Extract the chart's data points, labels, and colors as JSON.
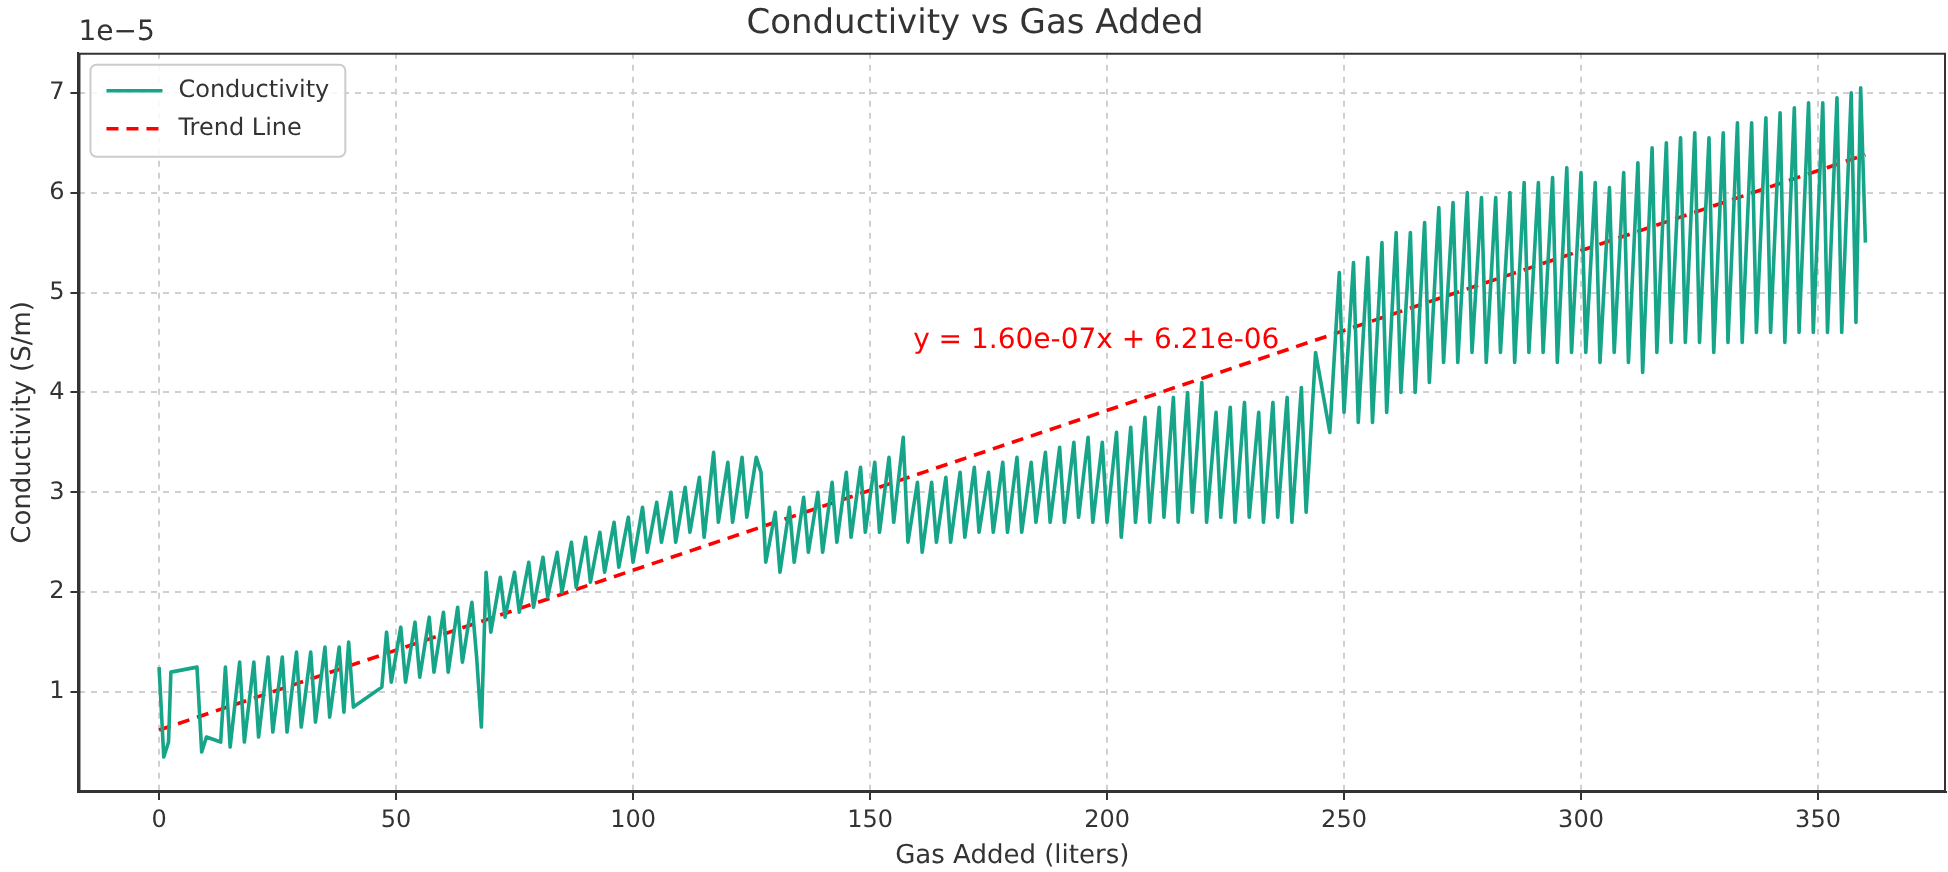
{
  "chart_data": {
    "type": "line",
    "title": "Conductivity vs Gas Added",
    "xlabel": "Gas Added (liters)",
    "ylabel": "Conductivity (S/m)",
    "xlim": [
      -17,
      377
    ],
    "xticks": [
      0,
      50,
      100,
      150,
      200,
      250,
      300,
      350
    ],
    "ylim": [
      0,
      7.4
    ],
    "yticks": [
      1,
      2,
      3,
      4,
      5,
      6,
      7
    ],
    "grid": true,
    "legend": "top left",
    "marker": "none",
    "annotations": [
      "1e−5",
      "y = 1.60e-07x + 6.21e-06"
    ],
    "series": [
      {
        "name": "Conductivity",
        "color": "#17a589",
        "line_style": "solid",
        "x": [
          0,
          1,
          2,
          2.5,
          8,
          9,
          10,
          13,
          14,
          15,
          17,
          18,
          20,
          21,
          23,
          24,
          26,
          27,
          29,
          30,
          32,
          33,
          35,
          36,
          38,
          39,
          40,
          41,
          47,
          48,
          49,
          51,
          52,
          54,
          55,
          57,
          58,
          60,
          61,
          63,
          64,
          66,
          67,
          68,
          69,
          70,
          72,
          73,
          75,
          76,
          78,
          79,
          81,
          82,
          84,
          85,
          87,
          88,
          90,
          91,
          93,
          94,
          96,
          97,
          99,
          100,
          102,
          103,
          105,
          106,
          108,
          109,
          111,
          112,
          114,
          115,
          117,
          118,
          120,
          121,
          123,
          124,
          126,
          127,
          128,
          130,
          131,
          133,
          134,
          136,
          137,
          139,
          140,
          142,
          143,
          145,
          146,
          148,
          149,
          151,
          152,
          154,
          155,
          157,
          158,
          160,
          161,
          163,
          164,
          166,
          167,
          169,
          170,
          172,
          173,
          175,
          176,
          178,
          179,
          181,
          182,
          184,
          185,
          187,
          188,
          190,
          191,
          193,
          194,
          196,
          197,
          199,
          200,
          202,
          203,
          205,
          206,
          208,
          209,
          211,
          212,
          214,
          215,
          217,
          218,
          220,
          221,
          223,
          224,
          226,
          227,
          229,
          230,
          232,
          233,
          235,
          236,
          238,
          239,
          241,
          242,
          244,
          247,
          249,
          250,
          252,
          253,
          255,
          256,
          258,
          259,
          261,
          262,
          264,
          265,
          267,
          268,
          270,
          271,
          273,
          274,
          276,
          277,
          279,
          280,
          282,
          283,
          285,
          286,
          288,
          289,
          291,
          292,
          294,
          295,
          297,
          298,
          300,
          301,
          303,
          304,
          306,
          307,
          309,
          310,
          312,
          313,
          315,
          316,
          318,
          319,
          321,
          322,
          324,
          325,
          327,
          328,
          330,
          331,
          333,
          334,
          336,
          337,
          339,
          340,
          342,
          343,
          345,
          346,
          348,
          349,
          351,
          352,
          354,
          355,
          357,
          358,
          359,
          360
        ],
        "values": [
          1.25,
          0.35,
          0.5,
          1.2,
          1.25,
          0.4,
          0.55,
          0.5,
          1.25,
          0.45,
          1.3,
          0.5,
          1.3,
          0.55,
          1.35,
          0.6,
          1.35,
          0.6,
          1.4,
          0.65,
          1.4,
          0.7,
          1.45,
          0.75,
          1.45,
          0.8,
          1.5,
          0.85,
          1.05,
          1.6,
          1.1,
          1.65,
          1.1,
          1.7,
          1.15,
          1.75,
          1.2,
          1.8,
          1.2,
          1.85,
          1.3,
          1.9,
          1.35,
          0.65,
          2.2,
          1.6,
          2.15,
          1.75,
          2.2,
          1.8,
          2.3,
          1.85,
          2.35,
          1.95,
          2.4,
          2.0,
          2.5,
          2.05,
          2.55,
          2.1,
          2.6,
          2.2,
          2.7,
          2.25,
          2.75,
          2.3,
          2.85,
          2.4,
          2.9,
          2.5,
          3.0,
          2.5,
          3.05,
          2.6,
          3.15,
          2.55,
          3.4,
          2.7,
          3.3,
          2.7,
          3.35,
          2.75,
          3.35,
          3.2,
          2.3,
          2.8,
          2.2,
          2.85,
          2.3,
          2.95,
          2.4,
          3.0,
          2.4,
          3.1,
          2.5,
          3.2,
          2.55,
          3.25,
          2.6,
          3.3,
          2.6,
          3.35,
          2.7,
          3.55,
          2.5,
          3.1,
          2.4,
          3.1,
          2.5,
          3.15,
          2.5,
          3.2,
          2.55,
          3.25,
          2.6,
          3.2,
          2.6,
          3.3,
          2.6,
          3.35,
          2.6,
          3.3,
          2.7,
          3.4,
          2.7,
          3.45,
          2.7,
          3.5,
          2.75,
          3.55,
          2.7,
          3.5,
          2.7,
          3.6,
          2.55,
          3.65,
          2.7,
          3.75,
          2.7,
          3.85,
          2.75,
          3.95,
          2.7,
          4.0,
          2.8,
          4.1,
          2.7,
          3.8,
          2.75,
          3.85,
          2.7,
          3.9,
          2.75,
          3.8,
          2.7,
          3.9,
          2.75,
          3.95,
          2.7,
          4.05,
          2.8,
          4.4,
          3.6,
          5.2,
          3.8,
          5.3,
          3.7,
          5.35,
          3.7,
          5.5,
          3.8,
          5.6,
          4.0,
          5.6,
          4.0,
          5.7,
          4.1,
          5.85,
          4.3,
          5.9,
          4.3,
          6.0,
          4.4,
          5.95,
          4.3,
          5.95,
          4.4,
          6.0,
          4.3,
          6.1,
          4.4,
          6.1,
          4.4,
          6.15,
          4.3,
          6.25,
          4.4,
          6.2,
          4.4,
          6.1,
          4.3,
          6.05,
          4.4,
          6.2,
          4.3,
          6.3,
          4.2,
          6.45,
          4.4,
          6.5,
          4.5,
          6.55,
          4.5,
          6.6,
          4.5,
          6.55,
          4.4,
          6.6,
          4.5,
          6.7,
          4.5,
          6.7,
          4.6,
          6.75,
          4.6,
          6.8,
          4.5,
          6.85,
          4.6,
          6.9,
          4.6,
          6.9,
          4.6,
          6.95,
          4.6,
          7.0,
          4.7,
          7.05,
          5.5
        ]
      },
      {
        "name": "Trend Line",
        "color": "#ff0000",
        "line_style": "dashed",
        "x": [
          0,
          360
        ],
        "values": [
          0.62,
          6.38
        ]
      }
    ]
  }
}
